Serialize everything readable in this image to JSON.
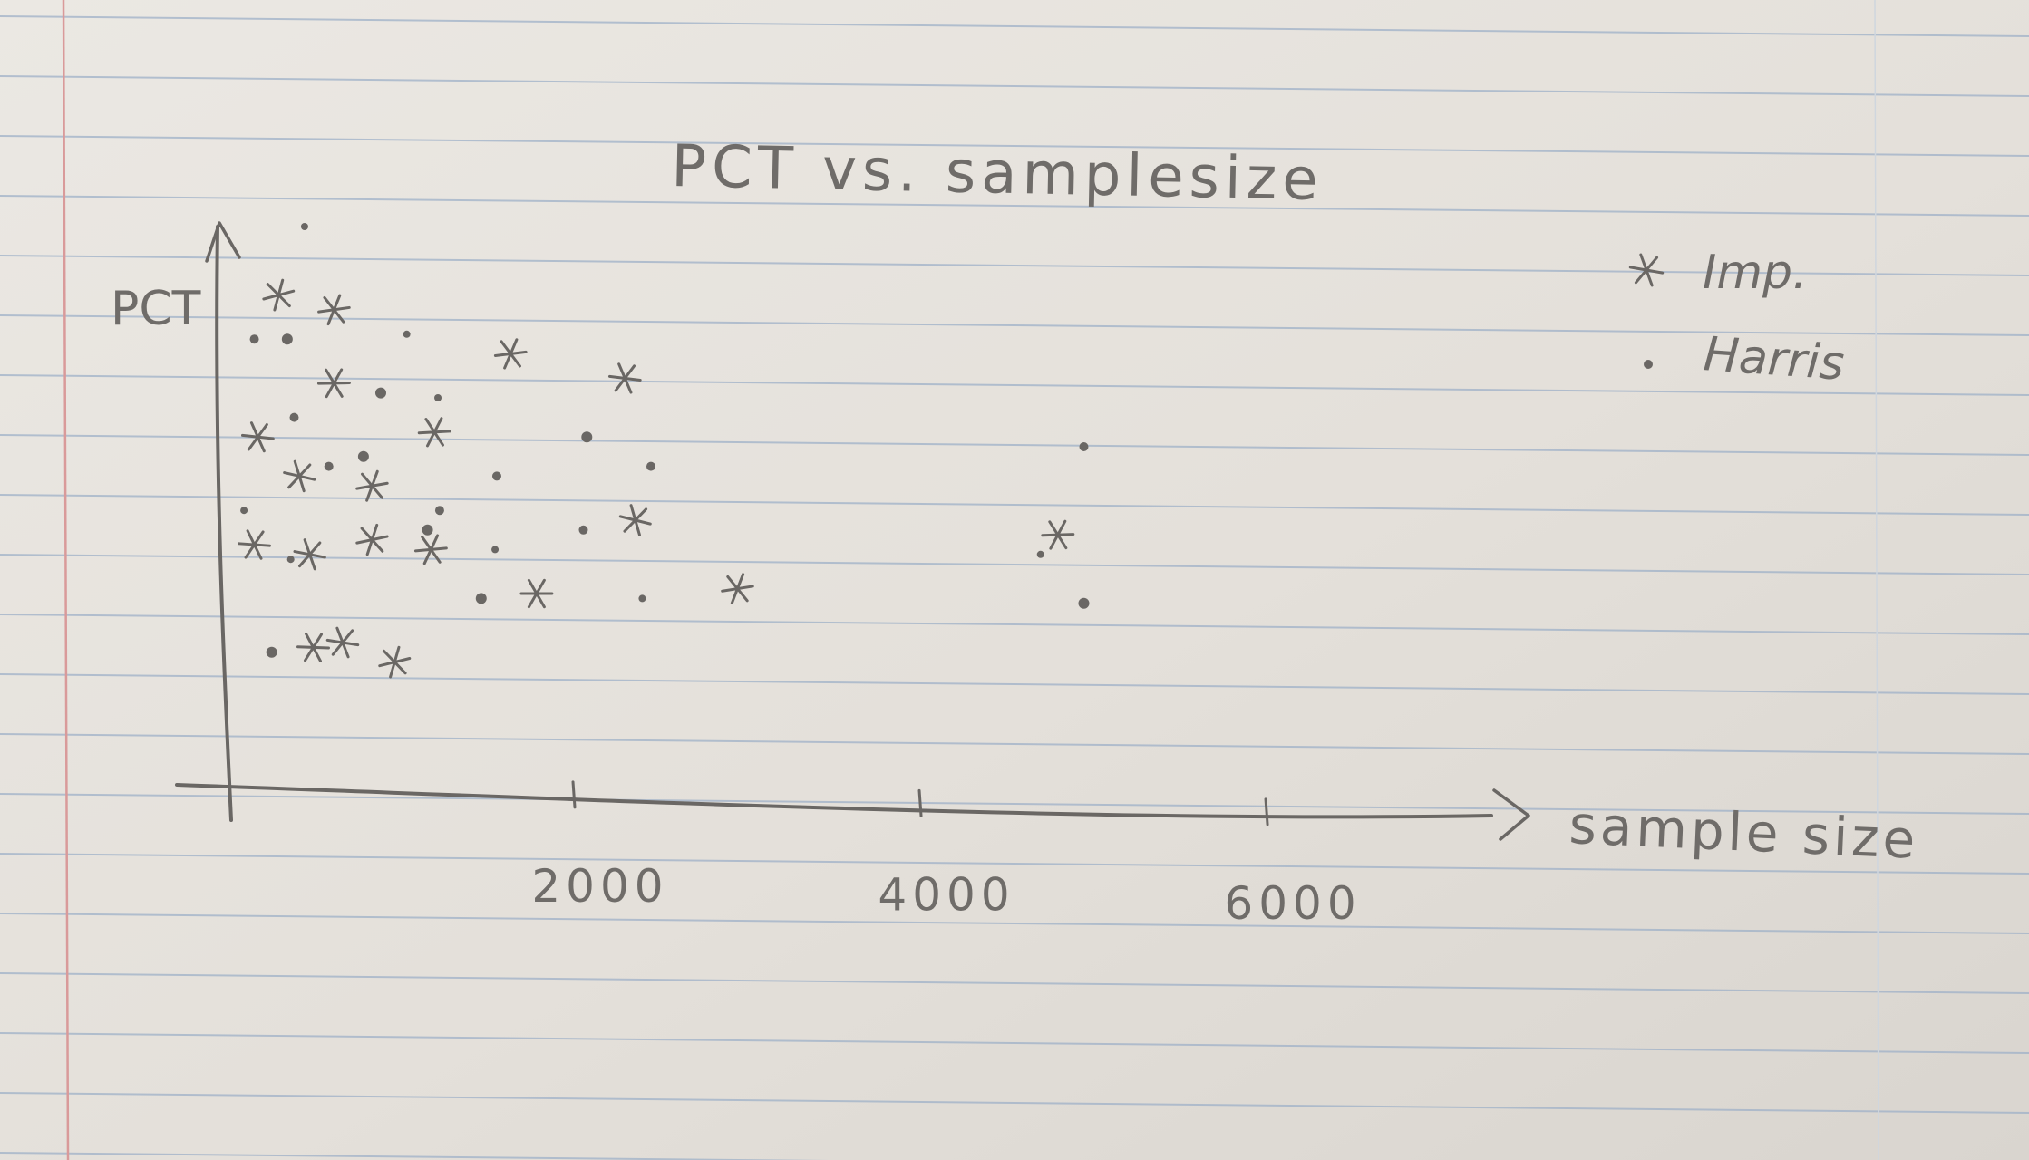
{
  "chart_data": {
    "type": "scatter",
    "title": "PCT vs. samplesize",
    "xlabel": "sample size",
    "ylabel": "PCT",
    "xticks": [
      "2000",
      "4000",
      "6000"
    ],
    "xlim": [
      0,
      7000
    ],
    "ylim": [
      0,
      10
    ],
    "grid": false,
    "legend_position": "top-right",
    "colors": {
      "ink": "#6a6764",
      "paper": "#e6e2dc",
      "rule": "#9fb1c8",
      "margin": "#d98f8f"
    },
    "series": [
      {
        "name": "Imp.",
        "marker": "star",
        "points": [
          {
            "x": 300,
            "y": 8.6
          },
          {
            "x": 620,
            "y": 8.3
          },
          {
            "x": 620,
            "y": 6.8
          },
          {
            "x": 180,
            "y": 5.7
          },
          {
            "x": 420,
            "y": 4.9
          },
          {
            "x": 840,
            "y": 4.7
          },
          {
            "x": 1200,
            "y": 5.8
          },
          {
            "x": 160,
            "y": 3.5
          },
          {
            "x": 480,
            "y": 3.3
          },
          {
            "x": 840,
            "y": 3.6
          },
          {
            "x": 1180,
            "y": 3.4
          },
          {
            "x": 500,
            "y": 1.4
          },
          {
            "x": 670,
            "y": 1.5
          },
          {
            "x": 970,
            "y": 1.1
          },
          {
            "x": 1640,
            "y": 7.4
          },
          {
            "x": 1790,
            "y": 2.5
          },
          {
            "x": 2300,
            "y": 6.9
          },
          {
            "x": 2360,
            "y": 4.0
          },
          {
            "x": 2950,
            "y": 2.6
          },
          {
            "x": 4800,
            "y": 3.7
          }
        ]
      },
      {
        "name": "Harris",
        "marker": "dot",
        "points": [
          {
            "x": 450,
            "y": 10.0
          },
          {
            "x": 160,
            "y": 7.7
          },
          {
            "x": 350,
            "y": 7.7
          },
          {
            "x": 1040,
            "y": 7.8
          },
          {
            "x": 390,
            "y": 6.1
          },
          {
            "x": 890,
            "y": 6.6
          },
          {
            "x": 1220,
            "y": 6.5
          },
          {
            "x": 590,
            "y": 5.1
          },
          {
            "x": 790,
            "y": 5.3
          },
          {
            "x": 100,
            "y": 4.2
          },
          {
            "x": 1230,
            "y": 4.2
          },
          {
            "x": 1160,
            "y": 3.8
          },
          {
            "x": 370,
            "y": 3.2
          },
          {
            "x": 1560,
            "y": 4.9
          },
          {
            "x": 2080,
            "y": 5.7
          },
          {
            "x": 1550,
            "y": 3.4
          },
          {
            "x": 2060,
            "y": 3.8
          },
          {
            "x": 1470,
            "y": 2.4
          },
          {
            "x": 2400,
            "y": 2.4
          },
          {
            "x": 2450,
            "y": 5.1
          },
          {
            "x": 260,
            "y": 1.3
          },
          {
            "x": 4700,
            "y": 3.3
          },
          {
            "x": 4950,
            "y": 5.5
          },
          {
            "x": 4950,
            "y": 2.3
          }
        ]
      }
    ]
  }
}
